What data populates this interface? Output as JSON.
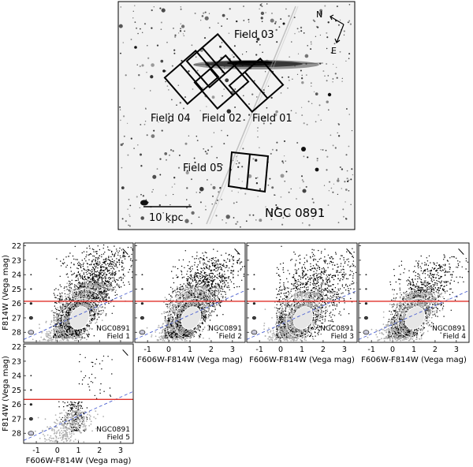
{
  "image_panel": {
    "galaxy_label": "NGC 0891",
    "scale_bar_label": "10 kpc",
    "compass": {
      "north": "N",
      "east": "E"
    },
    "fields": [
      {
        "label": "Field 03"
      },
      {
        "label": "Field 04"
      },
      {
        "label": "Field 02"
      },
      {
        "label": "Field 01"
      },
      {
        "label": "Field 05"
      }
    ]
  },
  "chart_data": [
    {
      "type": "scatter",
      "galaxy": "NGC0891",
      "field": "Field   1",
      "xlabel": "F606W-F814W (Vega mag)",
      "ylabel": "F814W (Vega mag)",
      "xlim": [
        -1.6,
        3.6
      ],
      "ylim": [
        28.7,
        21.8
      ],
      "xticks": [
        -1,
        0,
        1,
        2,
        3
      ],
      "yticks": [
        22,
        23,
        24,
        25,
        26,
        27,
        28
      ],
      "trgb": 25.85
    },
    {
      "type": "scatter",
      "galaxy": "NGC0891",
      "field": "Field   2",
      "xlabel": "F606W-F814W (Vega mag)",
      "ylabel": "F814W (Vega mag)",
      "xlim": [
        -1.6,
        3.6
      ],
      "ylim": [
        28.7,
        21.8
      ],
      "xticks": [
        -1,
        0,
        1,
        2,
        3
      ],
      "yticks": [
        22,
        23,
        24,
        25,
        26,
        27,
        28
      ],
      "trgb": 25.85
    },
    {
      "type": "scatter",
      "galaxy": "NGC0891",
      "field": "Field   3",
      "xlabel": "F606W-F814W (Vega mag)",
      "ylabel": "F814W (Vega mag)",
      "xlim": [
        -1.6,
        3.6
      ],
      "ylim": [
        28.7,
        21.8
      ],
      "xticks": [
        -1,
        0,
        1,
        2,
        3
      ],
      "yticks": [
        22,
        23,
        24,
        25,
        26,
        27,
        28
      ],
      "trgb": 25.85
    },
    {
      "type": "scatter",
      "galaxy": "NGC0891",
      "field": "Field   4",
      "xlabel": "F606W-F814W (Vega mag)",
      "ylabel": "F814W (Vega mag)",
      "xlim": [
        -1.6,
        3.6
      ],
      "ylim": [
        28.7,
        21.8
      ],
      "xticks": [
        -1,
        0,
        1,
        2,
        3
      ],
      "yticks": [
        22,
        23,
        24,
        25,
        26,
        27,
        28
      ],
      "trgb": 25.85
    },
    {
      "type": "scatter",
      "galaxy": "NGC0891",
      "field": "Field   5",
      "xlabel": "F606W-F814W (Vega mag)",
      "ylabel": "F814W (Vega mag)",
      "xlim": [
        -1.6,
        3.6
      ],
      "ylim": [
        28.7,
        21.8
      ],
      "xticks": [
        -1,
        0,
        1,
        2,
        3
      ],
      "yticks": [
        22,
        23,
        24,
        25,
        26,
        27,
        28
      ],
      "trgb": 25.65
    }
  ]
}
